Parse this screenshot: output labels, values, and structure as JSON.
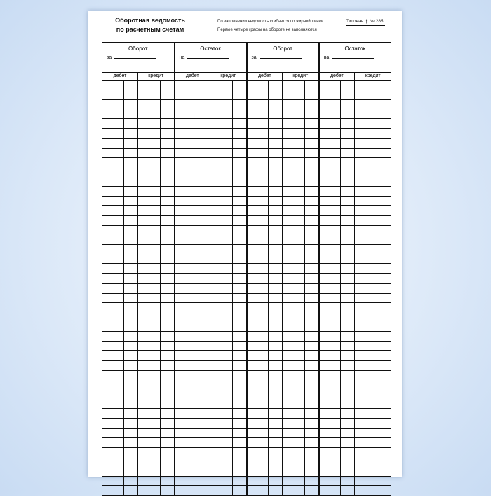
{
  "form": {
    "title_line1": "Оборотная ведомость",
    "title_line2": "по расчетным счетам",
    "note_line1": "По заполнении ведомость сгибается по жирной линии",
    "note_line2": "Первые четыре графы на обороте не заполняются",
    "form_number": "Типовая ф  № 285"
  },
  "groups": [
    {
      "heading": "Оборот",
      "prefix": "за"
    },
    {
      "heading": "Остаток",
      "prefix": "на"
    },
    {
      "heading": "Оборот",
      "prefix": "за"
    },
    {
      "heading": "Остаток",
      "prefix": "на"
    }
  ],
  "subheaders": {
    "debit": "дебет",
    "credit": "кредит"
  },
  "colors": {
    "background": "#dbe8f8",
    "paper": "#ffffff",
    "lines": "#111111"
  }
}
